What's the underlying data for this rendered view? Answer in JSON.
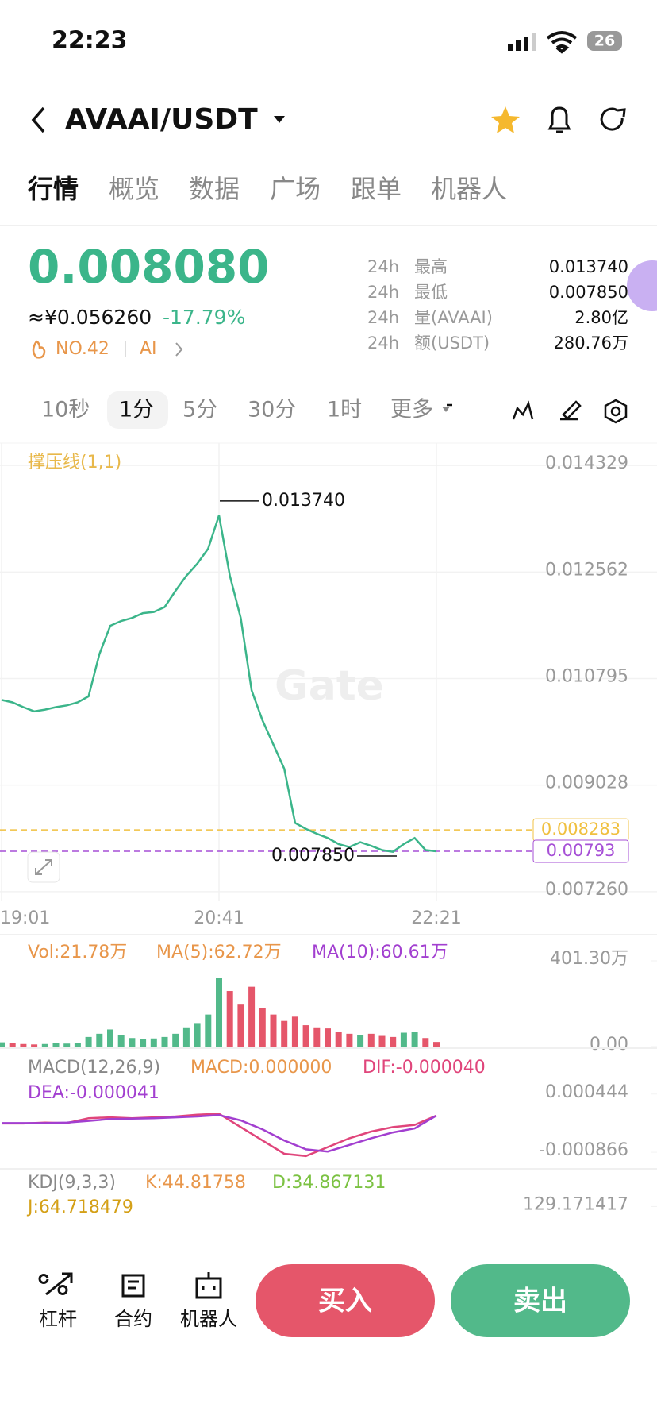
{
  "status_bar": {
    "time": "22:23",
    "battery": "26"
  },
  "header": {
    "pair": "AVAAI/USDT"
  },
  "tabs": [
    "行情",
    "概览",
    "数据",
    "广场",
    "跟单",
    "机器人"
  ],
  "ticker": {
    "price": "0.008080",
    "cny": "≈¥0.056260",
    "change": "-17.79%",
    "rank": "NO.42",
    "tag": "AI",
    "stats": [
      {
        "period": "24h",
        "label": "最高",
        "value": "0.013740"
      },
      {
        "period": "24h",
        "label": "最低",
        "value": "0.007850"
      },
      {
        "period": "24h",
        "label": "量(AVAAI)",
        "value": "2.80亿"
      },
      {
        "period": "24h",
        "label": "额(USDT)",
        "value": "280.76万"
      }
    ]
  },
  "intervals": [
    "10秒",
    "1分",
    "5分",
    "30分",
    "1时",
    "更多"
  ],
  "chart_data": [
    {
      "type": "line",
      "indicator": "撑压线(1,1)",
      "watermark": "Gate",
      "color": "#3bb58a",
      "grid": true,
      "categories": [
        "19:01",
        null,
        null,
        null,
        null,
        null,
        null,
        null,
        null,
        null,
        null,
        null,
        null,
        null,
        null,
        null,
        null,
        null,
        null,
        null,
        "20:41",
        null,
        null,
        null,
        null,
        null,
        null,
        null,
        null,
        null,
        null,
        null,
        null,
        null,
        null,
        null,
        null,
        null,
        null,
        null,
        "22:21"
      ],
      "values": [
        0.01044,
        0.0104,
        0.01032,
        0.01025,
        0.01028,
        0.01032,
        0.01035,
        0.0104,
        0.0105,
        0.0112,
        0.01167,
        0.01175,
        0.0118,
        0.01188,
        0.0119,
        0.01198,
        0.01225,
        0.0125,
        0.0127,
        0.01295,
        0.0135,
        0.0125,
        0.0118,
        0.0106,
        0.0101,
        0.0097,
        0.0093,
        0.0084,
        0.0083,
        0.00822,
        0.00815,
        0.00805,
        0.008,
        0.00808,
        0.00802,
        0.00795,
        0.00792,
        0.00805,
        0.00815,
        0.00795,
        0.00793
      ],
      "ylim": [
        0.0071,
        0.0147
      ],
      "yticks": [
        0.014329,
        0.012562,
        0.010795,
        0.009028,
        {
          "value": 0.00726,
          "label": "0.007260"
        }
      ],
      "annotations": [
        {
          "value": 0.01374,
          "label": "0.013740"
        },
        {
          "value": 0.00785,
          "label": "0.007850"
        }
      ],
      "reference_lines": [
        {
          "value": 0.008283,
          "label": "0.008283",
          "color": "#f0c040"
        },
        {
          "value": 0.00793,
          "label": "0.00793",
          "color": "#a64fd6"
        }
      ]
    },
    {
      "type": "bar",
      "up_color": "#52b98a",
      "down_color": "#e5566a",
      "legend": [
        {
          "text": "Vol:21.78万",
          "color": "#e8964a"
        },
        {
          "text": "MA(5):62.72万",
          "color": "#e8964a"
        },
        {
          "text": "MA(10):60.61万",
          "color": "#a23fd0"
        }
      ],
      "values": [
        20,
        15,
        12,
        10,
        12,
        15,
        14,
        18,
        45,
        60,
        80,
        55,
        40,
        35,
        38,
        45,
        60,
        90,
        110,
        150,
        320,
        260,
        200,
        280,
        180,
        150,
        120,
        140,
        100,
        90,
        85,
        70,
        60,
        55,
        60,
        50,
        45,
        65,
        70,
        40,
        21.78
      ],
      "ylim": [
        0,
        401.3
      ],
      "yticks": [
        {
          "value": 401.3,
          "label": "401.30万"
        },
        {
          "value": 0,
          "label": "0.00"
        }
      ]
    },
    {
      "type": "line",
      "legend": [
        {
          "text": "MACD(12,26,9)",
          "color": "#888888"
        },
        {
          "text": "MACD:0.000000",
          "color": "#e8964a"
        },
        {
          "text": "DIF:-0.000040",
          "color": "#e0457b"
        },
        {
          "text": "DEA:-0.000041",
          "color": "#a23fd0"
        }
      ],
      "series": [
        {
          "color": "#e0457b",
          "values": [
            -0.00022,
            -0.00022,
            -0.0002,
            -0.00021,
            -0.0001,
            -8e-05,
            -0.0001,
            -8e-05,
            -6e-05,
            -2e-05,
            0.0,
            -0.0003,
            -0.0006,
            -0.0009,
            -0.00095,
            -0.00075,
            -0.00055,
            -0.0004,
            -0.0003,
            -0.00025,
            -4e-05
          ]
        },
        {
          "color": "#a23fd0",
          "values": [
            -0.00021,
            -0.00021,
            -0.00021,
            -0.0002,
            -0.00016,
            -0.00012,
            -0.00011,
            -0.0001,
            -8e-05,
            -6e-05,
            -3e-05,
            -0.00015,
            -0.00035,
            -0.0006,
            -0.0008,
            -0.00085,
            -0.0007,
            -0.00055,
            -0.00042,
            -0.00033,
            -4.1e-05
          ]
        }
      ],
      "ylim": [
        -0.00115,
        0.00069
      ],
      "yticks": [
        0.000444,
        -0.000866
      ]
    },
    {
      "type": "line",
      "legend": [
        {
          "text": "KDJ(9,3,3)",
          "color": "#888888"
        },
        {
          "text": "K:44.81758",
          "color": "#e8964a"
        },
        {
          "text": "D:34.867131",
          "color": "#7cc243"
        },
        {
          "text": "J:64.718479",
          "color": "#d4a017"
        }
      ],
      "ylim": [
        -20,
        140
      ],
      "yticks": [
        129.171417
      ]
    }
  ],
  "bottom_bar": {
    "actions": [
      "杠杆",
      "合约",
      "机器人"
    ],
    "buy": "买入",
    "sell": "卖出"
  }
}
